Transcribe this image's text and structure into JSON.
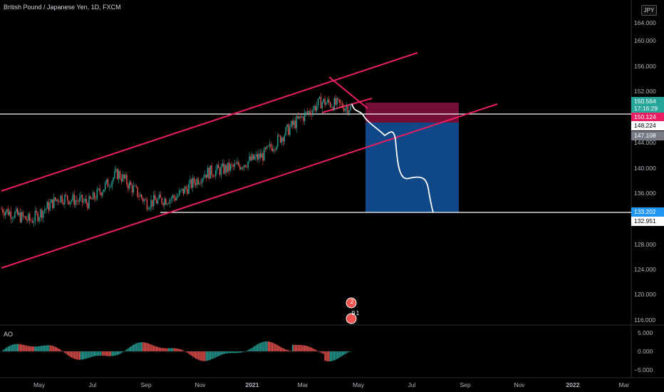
{
  "header": {
    "title": "British Pound / Japanese Yen, 1D, FXCM",
    "currency_badge": "JPY",
    "indicator_label": "AO"
  },
  "price_axis": {
    "ticks": [
      "164.000",
      "160.000",
      "156.000",
      "152.000",
      "148.224",
      "144.000",
      "140.000",
      "136.000",
      "132.951",
      "128.000",
      "124.000",
      "120.000",
      "116.000"
    ]
  },
  "price_tags": {
    "current_price": "150.564",
    "countdown": "17:16:29",
    "entry_line": "150.124",
    "level_a": "148.224",
    "level_b": "147.108",
    "target_line": "133.202",
    "level_c": "132.951"
  },
  "ao_axis": {
    "ticks": [
      "5.000",
      "0.000",
      "−5.000"
    ]
  },
  "time_axis": {
    "labels": [
      "May",
      "Jul",
      "Sep",
      "Nov",
      "2021",
      "Mar",
      "May",
      "Jul",
      "Sep",
      "Nov",
      "2022",
      "Mar"
    ]
  },
  "event_badges": [
    "2",
    "9",
    "1"
  ],
  "colors": {
    "channel": "#e91e63",
    "bull_candle": "#26a69a",
    "bear_candle": "#ef5350",
    "stop_zone": "#c2185b",
    "target_zone": "#1565c0",
    "horizontal_lines": "#ffffff",
    "background": "#000000"
  },
  "chart_data": {
    "type": "candlestick",
    "instrument": "British Pound / Japanese Yen, 1D, FXCM",
    "ylim": [
      114,
      166
    ],
    "monthly_close_path": [
      {
        "x": "2020-04",
        "y": 133
      },
      {
        "x": "2020-05",
        "y": 131
      },
      {
        "x": "2020-06",
        "y": 135
      },
      {
        "x": "2020-07",
        "y": 134
      },
      {
        "x": "2020-08",
        "y": 139
      },
      {
        "x": "2020-09",
        "y": 134
      },
      {
        "x": "2020-10",
        "y": 135
      },
      {
        "x": "2020-11",
        "y": 139
      },
      {
        "x": "2020-12",
        "y": 140
      },
      {
        "x": "2021-01",
        "y": 142
      },
      {
        "x": "2021-02",
        "y": 147
      },
      {
        "x": "2021-03",
        "y": 151
      },
      {
        "x": "2021-04",
        "y": 150
      }
    ],
    "horizontal_levels": [
      150.124,
      133.202
    ],
    "position": {
      "entry": 150.124,
      "stop": 152.5,
      "target": 133.202
    },
    "ao": {
      "ylim": [
        -7,
        7
      ],
      "ticks": [
        5,
        0,
        -5
      ]
    }
  }
}
